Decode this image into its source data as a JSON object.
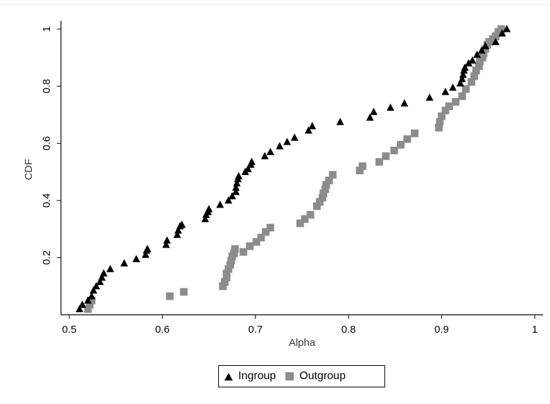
{
  "chart_data": {
    "type": "scatter",
    "xlabel": "Alpha",
    "ylabel": "CDF",
    "xlim": [
      0.5,
      1
    ],
    "ylim": [
      0,
      1
    ],
    "x_ticks": [
      "0.5",
      "0.6",
      "0.7",
      "0.8",
      "0.9",
      "1"
    ],
    "y_ticks": [
      "0.2",
      "0.4",
      "0.6",
      "0.8",
      "1"
    ],
    "legend_position": "bottom",
    "series": [
      {
        "name": "Ingroup",
        "marker": "triangle",
        "color": "#000000",
        "x": [
          0.511,
          0.514,
          0.52,
          0.524,
          0.526,
          0.529,
          0.533,
          0.535,
          0.537,
          0.544,
          0.559,
          0.572,
          0.582,
          0.583,
          0.584,
          0.604,
          0.605,
          0.616,
          0.617,
          0.619,
          0.621,
          0.646,
          0.647,
          0.649,
          0.65,
          0.662,
          0.671,
          0.675,
          0.679,
          0.679,
          0.68,
          0.681,
          0.682,
          0.689,
          0.692,
          0.695,
          0.696,
          0.71,
          0.716,
          0.726,
          0.734,
          0.742,
          0.757,
          0.761,
          0.791,
          0.823,
          0.827,
          0.845,
          0.86,
          0.887,
          0.904,
          0.912,
          0.92,
          0.922,
          0.923,
          0.924,
          0.925,
          0.929,
          0.933,
          0.938,
          0.943,
          0.947,
          0.958,
          0.965,
          0.97
        ],
        "y": [
          0.02,
          0.035,
          0.05,
          0.065,
          0.085,
          0.1,
          0.115,
          0.13,
          0.145,
          0.16,
          0.18,
          0.195,
          0.21,
          0.225,
          0.23,
          0.245,
          0.26,
          0.28,
          0.295,
          0.31,
          0.315,
          0.335,
          0.35,
          0.36,
          0.37,
          0.385,
          0.4,
          0.415,
          0.43,
          0.445,
          0.46,
          0.475,
          0.485,
          0.5,
          0.51,
          0.525,
          0.535,
          0.555,
          0.57,
          0.59,
          0.605,
          0.62,
          0.645,
          0.66,
          0.675,
          0.69,
          0.71,
          0.725,
          0.74,
          0.76,
          0.78,
          0.795,
          0.81,
          0.825,
          0.84,
          0.855,
          0.865,
          0.88,
          0.89,
          0.91,
          0.925,
          0.94,
          0.955,
          0.985,
          1.0
        ]
      },
      {
        "name": "Outgroup",
        "marker": "square",
        "color": "#8c8c8c",
        "x": [
          0.52,
          0.522,
          0.524,
          0.608,
          0.623,
          0.665,
          0.667,
          0.669,
          0.669,
          0.671,
          0.673,
          0.674,
          0.675,
          0.677,
          0.678,
          0.687,
          0.694,
          0.701,
          0.706,
          0.711,
          0.716,
          0.748,
          0.753,
          0.759,
          0.766,
          0.769,
          0.772,
          0.773,
          0.775,
          0.776,
          0.779,
          0.783,
          0.812,
          0.815,
          0.833,
          0.84,
          0.849,
          0.856,
          0.863,
          0.871,
          0.897,
          0.898,
          0.9,
          0.904,
          0.908,
          0.915,
          0.922,
          0.926,
          0.932,
          0.935,
          0.937,
          0.94,
          0.941,
          0.944,
          0.945,
          0.947,
          0.949,
          0.951,
          0.955,
          0.958,
          0.961,
          0.964
        ],
        "y": [
          0.02,
          0.035,
          0.05,
          0.065,
          0.08,
          0.1,
          0.115,
          0.13,
          0.145,
          0.16,
          0.175,
          0.19,
          0.205,
          0.215,
          0.23,
          0.22,
          0.24,
          0.255,
          0.27,
          0.29,
          0.305,
          0.32,
          0.335,
          0.35,
          0.38,
          0.395,
          0.41,
          0.425,
          0.44,
          0.455,
          0.47,
          0.49,
          0.505,
          0.52,
          0.535,
          0.555,
          0.575,
          0.595,
          0.615,
          0.635,
          0.655,
          0.675,
          0.695,
          0.715,
          0.73,
          0.745,
          0.765,
          0.79,
          0.815,
          0.835,
          0.855,
          0.87,
          0.885,
          0.9,
          0.915,
          0.93,
          0.945,
          0.955,
          0.965,
          0.975,
          0.99,
          1.0
        ]
      }
    ]
  }
}
